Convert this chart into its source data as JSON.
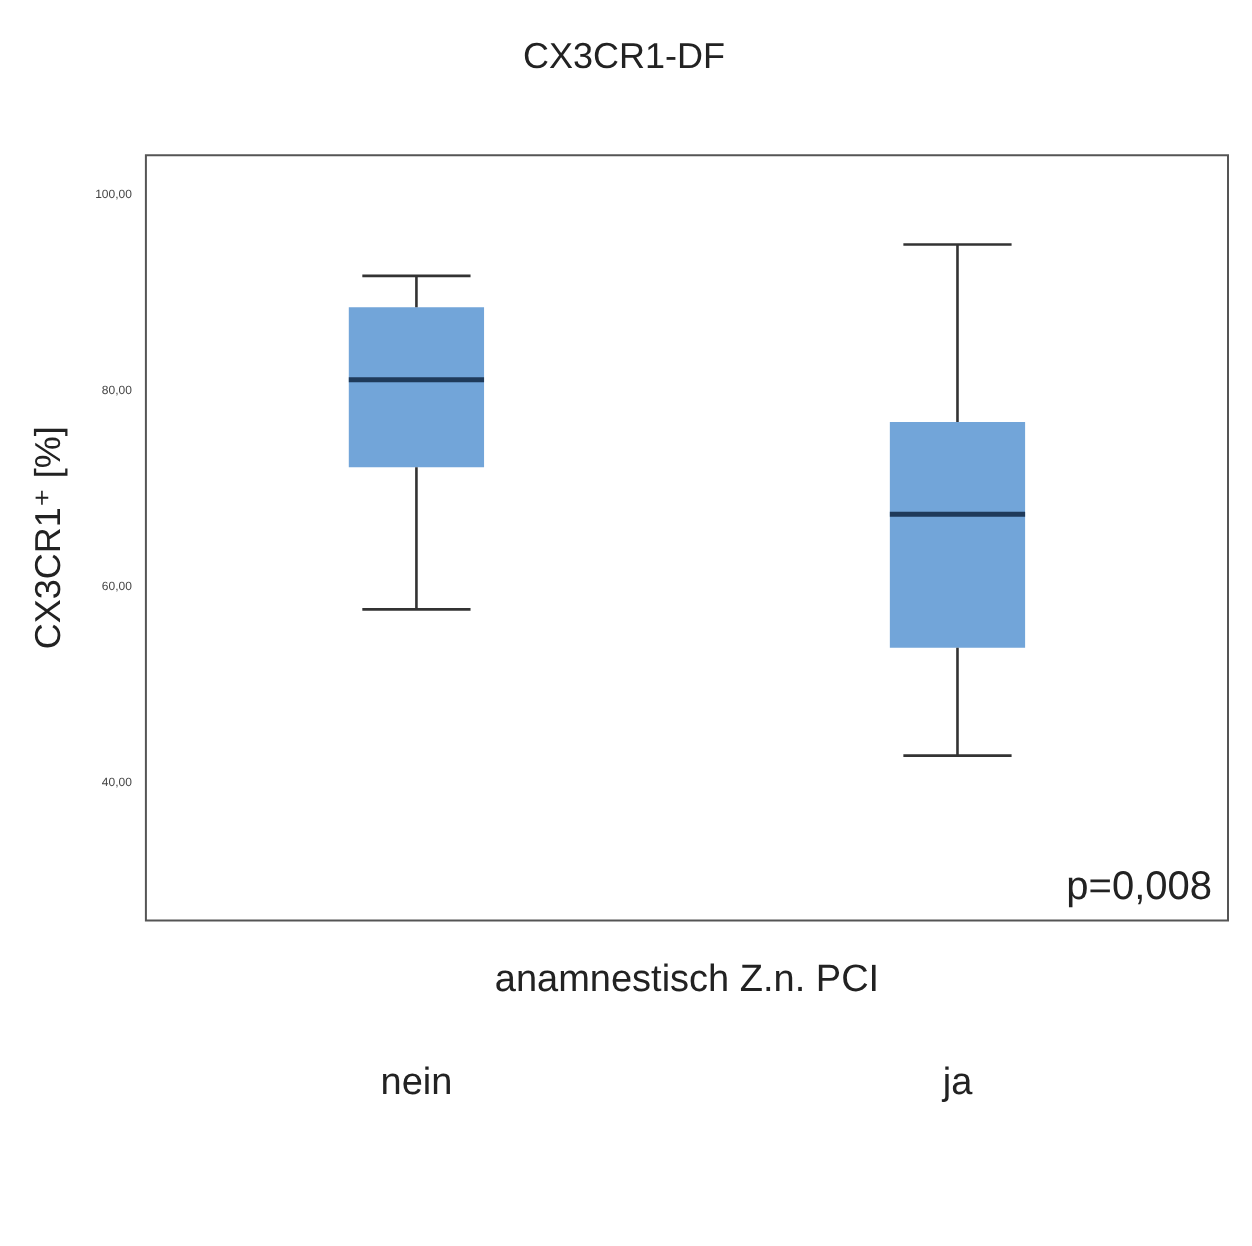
{
  "chart_data": {
    "type": "box",
    "title": "CX3CR1-DF",
    "xlabel": "anamnestisch Z.n. PCI",
    "ylabel": "CX3CR1⁺ [%]",
    "categories": [
      "nein",
      "ja"
    ],
    "boxes": [
      {
        "low": 57.7,
        "q1": 72.2,
        "median": 81.1,
        "q3": 88.5,
        "high": 91.7
      },
      {
        "low": 42.8,
        "q1": 53.8,
        "median": 67.4,
        "q3": 76.8,
        "high": 94.9
      }
    ],
    "color": "#72a5d9",
    "ylim": [
      26,
      104
    ],
    "yticks": [
      {
        "value": 40,
        "label": "40,00"
      },
      {
        "value": 60,
        "label": "60,00"
      },
      {
        "value": 80,
        "label": "80,00"
      },
      {
        "value": 100,
        "label": "100,00"
      }
    ],
    "grid": false,
    "legend": false,
    "annotations": [
      "p=0,008"
    ]
  }
}
